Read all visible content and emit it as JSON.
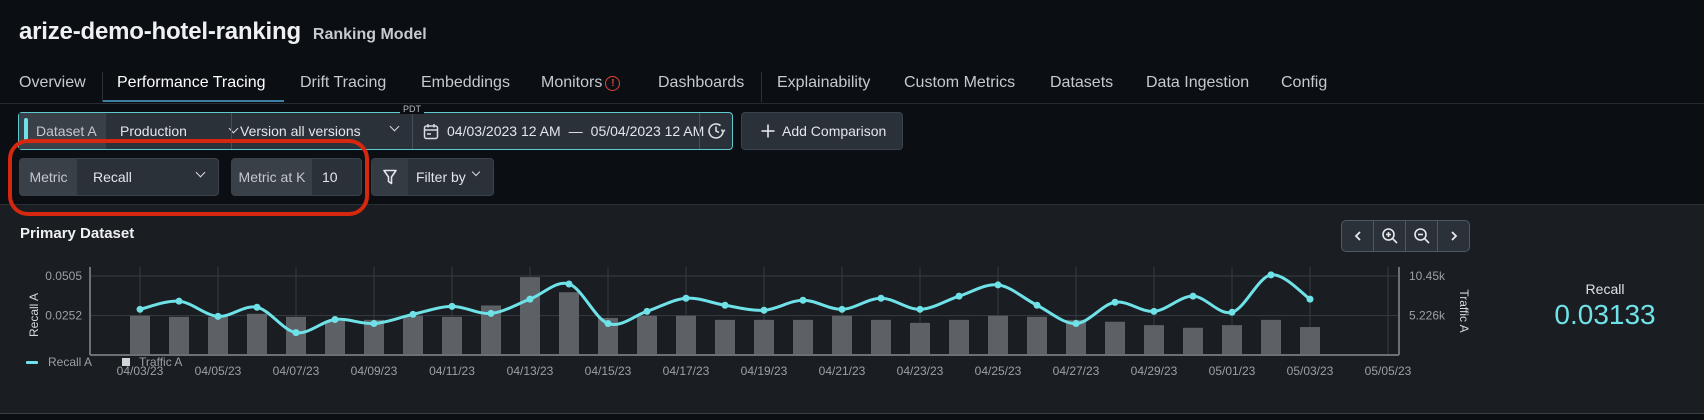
{
  "header": {
    "title": "arize-demo-hotel-ranking",
    "subtitle": "Ranking Model"
  },
  "tabs": [
    {
      "label": "Overview"
    },
    {
      "label": "Performance Tracing",
      "active": true
    },
    {
      "label": "Drift Tracing"
    },
    {
      "label": "Embeddings"
    },
    {
      "label": "Monitors",
      "alert_icon": "!"
    },
    {
      "label": "Dashboards"
    },
    {
      "label": "Explainability"
    },
    {
      "label": "Custom Metrics"
    },
    {
      "label": "Datasets"
    },
    {
      "label": "Data Ingestion"
    },
    {
      "label": "Config"
    }
  ],
  "filters": {
    "dataset_label": "Dataset A",
    "environment": "Production",
    "version": "Version all versions",
    "timezone": "PDT",
    "date_start": "04/03/2023 12 AM",
    "date_sep": "—",
    "date_end": "05/04/2023 12 AM",
    "add_comparison": "Add Comparison",
    "metric_label": "Metric",
    "metric_value": "Recall",
    "metric_k_label": "Metric at K",
    "metric_k_value": "10",
    "filter_by": "Filter by"
  },
  "colors": {
    "accent": "#6fe2e8",
    "bar": "#5d6165",
    "annotation": "#d6270f",
    "alert": "#e0453f"
  },
  "panel": {
    "title": "Primary Dataset",
    "summary_label": "Recall",
    "summary_value": "0.03133",
    "legend": [
      "Recall A",
      "Traffic A"
    ]
  },
  "chart_data": {
    "type": "bar+line",
    "title": "Primary Dataset",
    "xlabel": "",
    "ylabel": "Recall A",
    "y2label": "Traffic A",
    "y_ticks": [
      "0.0505",
      "0.0252"
    ],
    "y_tick_values": [
      0.0505,
      0.0252
    ],
    "y2_ticks": [
      "10.45k",
      "5.226k"
    ],
    "y2_tick_values": [
      10450,
      5226
    ],
    "ylim": [
      0,
      0.0505
    ],
    "y2lim": [
      0,
      10450
    ],
    "x_ticks": [
      "04/03/23",
      "04/05/23",
      "04/07/23",
      "04/09/23",
      "04/11/23",
      "04/13/23",
      "04/15/23",
      "04/17/23",
      "04/19/23",
      "04/21/23",
      "04/23/23",
      "04/25/23",
      "04/27/23",
      "04/29/23",
      "05/01/23",
      "05/03/23",
      "05/05/23"
    ],
    "x": [
      "04/03/23",
      "04/04/23",
      "04/05/23",
      "04/06/23",
      "04/07/23",
      "04/08/23",
      "04/09/23",
      "04/10/23",
      "04/11/23",
      "04/12/23",
      "04/13/23",
      "04/14/23",
      "04/15/23",
      "04/16/23",
      "04/17/23",
      "04/18/23",
      "04/19/23",
      "04/20/23",
      "04/21/23",
      "04/22/23",
      "04/23/23",
      "04/24/23",
      "04/25/23",
      "04/26/23",
      "04/27/23",
      "04/28/23",
      "04/29/23",
      "04/30/23",
      "05/01/23",
      "05/02/23",
      "05/03/23"
    ],
    "series": [
      {
        "name": "Recall A",
        "type": "line",
        "axis": "left",
        "values": [
          0.0292,
          0.0344,
          0.0247,
          0.0305,
          0.0143,
          0.0227,
          0.0201,
          0.026,
          0.0311,
          0.0266,
          0.0357,
          0.0454,
          0.0201,
          0.0279,
          0.0363,
          0.0318,
          0.0286,
          0.035,
          0.0292,
          0.0363,
          0.0292,
          0.0376,
          0.0448,
          0.0318,
          0.0201,
          0.0337,
          0.0279,
          0.0376,
          0.0273,
          0.0512,
          0.0357
        ]
      },
      {
        "name": "Traffic A",
        "type": "bar",
        "axis": "right",
        "values": [
          5200,
          5050,
          5050,
          5450,
          5050,
          4500,
          4650,
          5200,
          5050,
          6550,
          10300,
          8300,
          4900,
          5200,
          5200,
          4650,
          4650,
          4650,
          5200,
          4650,
          4250,
          4650,
          5200,
          5050,
          4650,
          4400,
          3950,
          3600,
          3950,
          4650,
          3700
        ]
      }
    ],
    "legend": [
      "Recall A",
      "Traffic A"
    ],
    "legend_position": "bottom-left",
    "grid": true
  }
}
